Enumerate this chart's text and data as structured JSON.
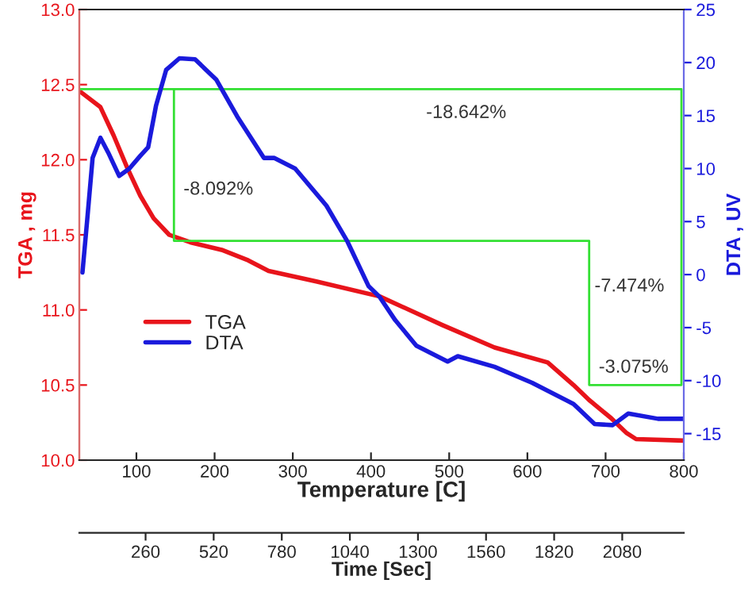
{
  "chart_data": {
    "type": "line",
    "xlabel": "Temperature [C]",
    "ylabel": "TGA , mg",
    "y2label": "DTA , UV",
    "x2label": "Time [Sec]",
    "xlim": [
      27,
      800
    ],
    "xticks": [
      100,
      200,
      300,
      400,
      500,
      600,
      700,
      800
    ],
    "ylim": [
      10.0,
      13.0
    ],
    "yticks": [
      {
        "value": 10.0,
        "label": "10.0"
      },
      {
        "value": 10.5,
        "label": "10.5"
      },
      {
        "value": 11.0,
        "label": "11.0"
      },
      {
        "value": 11.5,
        "label": "11.5"
      },
      {
        "value": 12.0,
        "label": "12.0"
      },
      {
        "value": 12.5,
        "label": "12.5"
      },
      {
        "value": 13.0,
        "label": "13.0"
      }
    ],
    "y2lim": [
      -17.5,
      25
    ],
    "y2ticks": [
      -15,
      -10,
      -5,
      0,
      5,
      10,
      15,
      20,
      25
    ],
    "x2lim": [
      7,
      2315
    ],
    "x2ticks": [
      260,
      520,
      780,
      1040,
      1300,
      1560,
      1820,
      2080
    ],
    "legend": "left",
    "grid": false,
    "series": [
      {
        "name": "TGA",
        "color": "#e8141b",
        "x": [
          29,
          54,
          71,
          88,
          105,
          122,
          142,
          169,
          209,
          243,
          269,
          330,
          411,
          491,
          558,
          626,
          659,
          679,
          707,
          727,
          739,
          800
        ],
        "values": [
          12.45,
          12.35,
          12.16,
          11.95,
          11.76,
          11.61,
          11.5,
          11.45,
          11.4,
          11.33,
          11.26,
          11.19,
          11.09,
          10.9,
          10.75,
          10.65,
          10.5,
          10.4,
          10.28,
          10.18,
          10.14,
          10.13
        ]
      },
      {
        "name": "DTA",
        "color": "#1a1adc",
        "axis": "y2",
        "x": [
          31,
          37,
          44,
          54,
          64,
          78,
          91,
          105,
          115,
          125,
          138,
          155,
          175,
          202,
          229,
          263,
          276,
          303,
          343,
          370,
          397,
          411,
          431,
          458,
          498,
          511,
          558,
          606,
          659,
          686,
          709,
          729,
          767,
          800
        ],
        "values": [
          0.2,
          5.1,
          11.0,
          12.9,
          11.5,
          9.3,
          10.0,
          11.2,
          12.0,
          15.9,
          19.3,
          20.4,
          20.3,
          18.4,
          14.9,
          11.0,
          11.0,
          10.0,
          6.5,
          3.1,
          -1.1,
          -2.1,
          -4.3,
          -6.7,
          -8.2,
          -7.7,
          -8.7,
          -10.2,
          -12.2,
          -14.1,
          -14.2,
          -13.1,
          -13.6,
          -13.6
        ]
      },
      {
        "color": "#33e033",
        "x": [
          27,
          797,
          797,
          679,
          679,
          148,
          148
        ],
        "values": [
          12.47,
          12.47,
          10.5,
          10.5,
          11.46,
          11.46,
          12.47
        ]
      }
    ],
    "annotations": [
      "-8.092%",
      "-18.642%",
      "-7.474%",
      "-3.075%"
    ]
  }
}
